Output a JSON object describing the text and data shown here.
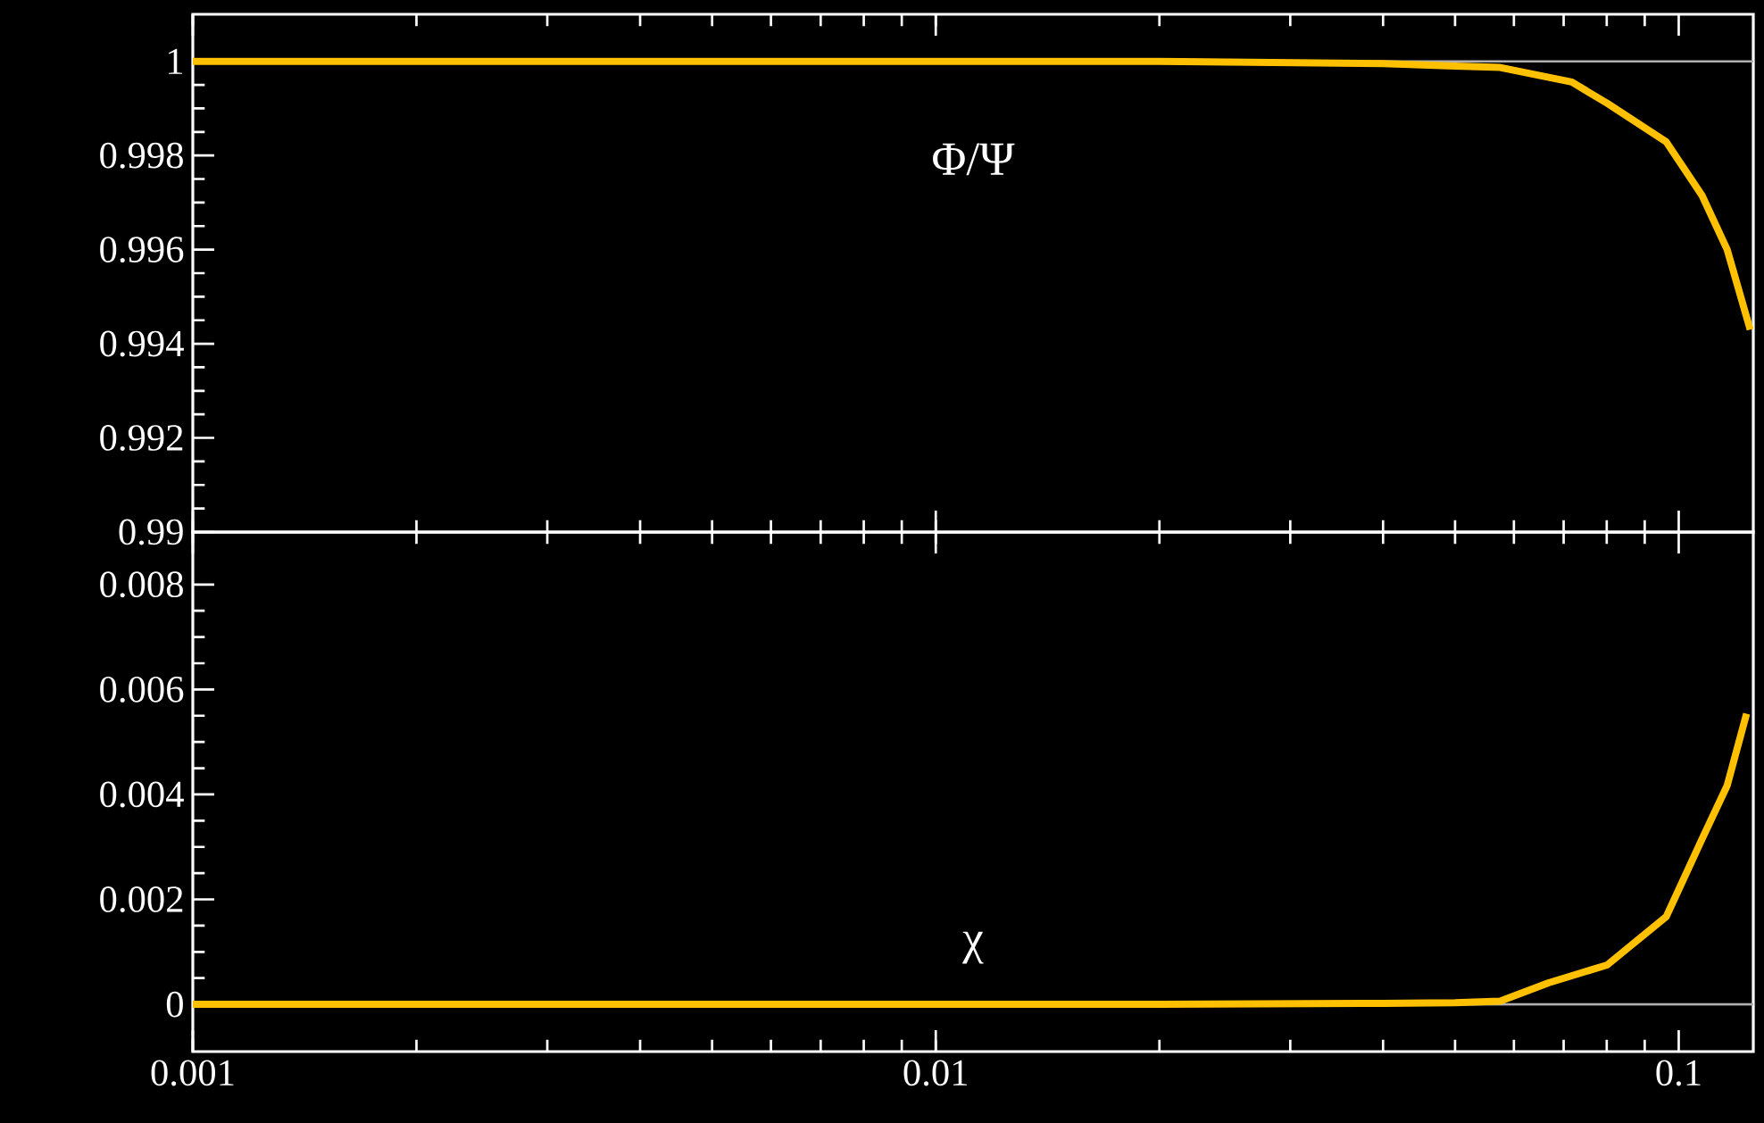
{
  "chart_data": [
    {
      "type": "line",
      "tick_labels": "y",
      "xlim": [
        0.001,
        0.126
      ],
      "ylim": [
        0.99,
        1.001
      ],
      "xticks": [
        {
          "value": 0.001,
          "label": null
        },
        {
          "value": 0.01,
          "label": null
        },
        {
          "value": 0.1,
          "label": null
        }
      ],
      "yticks": [
        0.99,
        0.992,
        0.994,
        0.996,
        0.998,
        1
      ],
      "log": "x",
      "grid": false,
      "legend": false,
      "marker": "none",
      "line_style": "solid",
      "ref_lines": [
        {
          "axis": "y",
          "value": 1,
          "color": "#b0b0b0"
        }
      ],
      "series": [
        {
          "name": "Φ/Ψ",
          "color": "#ffc000",
          "x": [
            0.001,
            0.002,
            0.005,
            0.01,
            0.02,
            0.04,
            0.05,
            0.0575,
            0.0718,
            0.0801,
            0.0962,
            0.1075,
            0.1162,
            0.1248
          ],
          "values": [
            1,
            1,
            1,
            1,
            1,
            0.99995,
            0.9999,
            0.99987,
            0.99956,
            0.99911,
            0.99829,
            0.99715,
            0.996,
            0.9943
          ]
        }
      ]
    },
    {
      "type": "line",
      "xlim": [
        0.001,
        0.126
      ],
      "ylim": [
        -0.0009,
        0.009
      ],
      "xticks": [
        0.001,
        0.01,
        0.1
      ],
      "yticks": [
        0,
        0.002,
        0.004,
        0.006,
        0.008
      ],
      "log": "x",
      "grid": false,
      "legend": false,
      "marker": "none",
      "line_style": "solid",
      "ref_lines": [
        {
          "axis": "y",
          "value": 0,
          "color": "#b0b0b0"
        }
      ],
      "series": [
        {
          "name": "χ",
          "color": "#ffc000",
          "x": [
            0.001,
            0.002,
            0.005,
            0.01,
            0.02,
            0.04,
            0.05,
            0.0575,
            0.0668,
            0.0801,
            0.0962,
            0.1075,
            0.1162,
            0.1234
          ],
          "values": [
            0,
            0,
            0,
            0,
            0,
            2e-05,
            3e-05,
            6e-05,
            0.00041,
            0.00075,
            0.00167,
            0.00315,
            0.00417,
            0.00554
          ]
        }
      ]
    }
  ]
}
